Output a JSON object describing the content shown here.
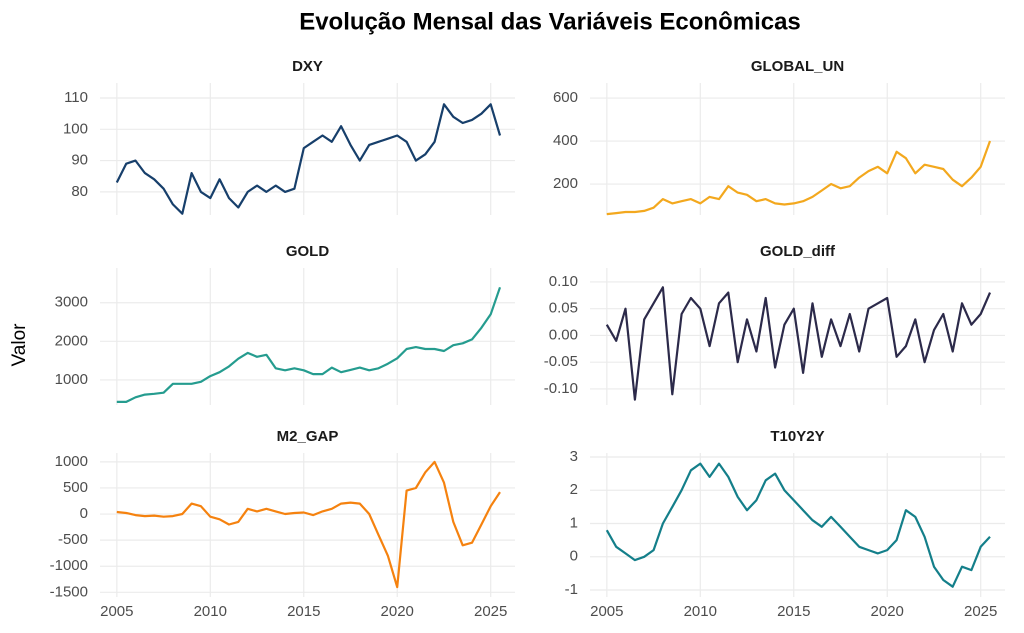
{
  "title": "Evolução Mensal das Variáveis Econômicas",
  "ylabel": "Valor",
  "chart_data": [
    {
      "type": "line",
      "title": "DXY",
      "color": "#173f6b",
      "grid": true,
      "x": [
        2005,
        2005.5,
        2006,
        2006.5,
        2007,
        2007.5,
        2008,
        2008.5,
        2009,
        2009.5,
        2010,
        2010.5,
        2011,
        2011.5,
        2012,
        2012.5,
        2013,
        2013.5,
        2014,
        2014.5,
        2015,
        2015.5,
        2016,
        2016.5,
        2017,
        2017.5,
        2018,
        2018.5,
        2019,
        2019.5,
        2020,
        2020.5,
        2021,
        2021.5,
        2022,
        2022.5,
        2023,
        2023.5,
        2024,
        2024.5,
        2025,
        2025.5
      ],
      "values": [
        83,
        89,
        90,
        86,
        84,
        81,
        76,
        73,
        86,
        80,
        78,
        84,
        78,
        75,
        80,
        82,
        80,
        82,
        80,
        81,
        94,
        96,
        98,
        96,
        101,
        95,
        90,
        95,
        96,
        97,
        98,
        96,
        90,
        92,
        96,
        108,
        104,
        102,
        103,
        105,
        108,
        98
      ],
      "xlim": [
        2004.1,
        2026.3
      ],
      "xticks": [
        2005,
        2010,
        2015,
        2020,
        2025
      ],
      "ylim": [
        72.6,
        114.8
      ],
      "yticks": [
        80,
        90,
        100,
        110
      ]
    },
    {
      "type": "line",
      "title": "GLOBAL_UN",
      "color": "#f3a81e",
      "grid": true,
      "x": [
        2005,
        2005.5,
        2006,
        2006.5,
        2007,
        2007.5,
        2008,
        2008.5,
        2009,
        2009.5,
        2010,
        2010.5,
        2011,
        2011.5,
        2012,
        2012.5,
        2013,
        2013.5,
        2014,
        2014.5,
        2015,
        2015.5,
        2016,
        2016.5,
        2017,
        2017.5,
        2018,
        2018.5,
        2019,
        2019.5,
        2020,
        2020.5,
        2021,
        2021.5,
        2022,
        2022.5,
        2023,
        2023.5,
        2024,
        2024.5,
        2025,
        2025.5
      ],
      "values": [
        60,
        65,
        70,
        70,
        75,
        90,
        130,
        110,
        120,
        130,
        110,
        140,
        130,
        190,
        160,
        150,
        120,
        130,
        110,
        105,
        110,
        120,
        140,
        170,
        200,
        180,
        190,
        230,
        260,
        280,
        250,
        350,
        320,
        250,
        290,
        280,
        270,
        220,
        190,
        230,
        280,
        400
      ],
      "xlim": [
        2004.1,
        2026.3
      ],
      "xticks": [
        2005,
        2010,
        2015,
        2020,
        2025
      ],
      "ylim": [
        56,
        670
      ],
      "yticks": [
        200,
        400,
        600
      ]
    },
    {
      "type": "line",
      "title": "GOLD",
      "color": "#259c8f",
      "grid": true,
      "x": [
        2005,
        2005.5,
        2006,
        2006.5,
        2007,
        2007.5,
        2008,
        2008.5,
        2009,
        2009.5,
        2010,
        2010.5,
        2011,
        2011.5,
        2012,
        2012.5,
        2013,
        2013.5,
        2014,
        2014.5,
        2015,
        2015.5,
        2016,
        2016.5,
        2017,
        2017.5,
        2018,
        2018.5,
        2019,
        2019.5,
        2020,
        2020.5,
        2021,
        2021.5,
        2022,
        2022.5,
        2023,
        2023.5,
        2024,
        2024.5,
        2025,
        2025.5
      ],
      "values": [
        430,
        430,
        550,
        620,
        640,
        670,
        900,
        900,
        900,
        950,
        1100,
        1200,
        1350,
        1550,
        1700,
        1600,
        1650,
        1300,
        1250,
        1300,
        1250,
        1150,
        1150,
        1320,
        1200,
        1260,
        1320,
        1250,
        1300,
        1420,
        1560,
        1800,
        1850,
        1800,
        1800,
        1750,
        1900,
        1950,
        2050,
        2350,
        2700,
        3400
      ],
      "xlim": [
        2004.1,
        2026.3
      ],
      "xticks": [
        2005,
        2010,
        2015,
        2020,
        2025
      ],
      "ylim": [
        350,
        3900
      ],
      "yticks": [
        1000,
        2000,
        3000
      ]
    },
    {
      "type": "line",
      "title": "GOLD_diff",
      "color": "#2c2a4a",
      "grid": true,
      "x": [
        2005,
        2005.5,
        2006,
        2006.5,
        2007,
        2007.5,
        2008,
        2008.5,
        2009,
        2009.5,
        2010,
        2010.5,
        2011,
        2011.5,
        2012,
        2012.5,
        2013,
        2013.5,
        2014,
        2014.5,
        2015,
        2015.5,
        2016,
        2016.5,
        2017,
        2017.5,
        2018,
        2018.5,
        2019,
        2019.5,
        2020,
        2020.5,
        2021,
        2021.5,
        2022,
        2022.5,
        2023,
        2023.5,
        2024,
        2024.5,
        2025,
        2025.5
      ],
      "values": [
        0.02,
        -0.01,
        0.05,
        -0.12,
        0.03,
        0.06,
        0.09,
        -0.11,
        0.04,
        0.07,
        0.05,
        -0.02,
        0.06,
        0.08,
        -0.05,
        0.03,
        -0.03,
        0.07,
        -0.06,
        0.02,
        0.05,
        -0.07,
        0.06,
        -0.04,
        0.03,
        -0.02,
        0.04,
        -0.03,
        0.05,
        0.06,
        0.07,
        -0.04,
        -0.02,
        0.03,
        -0.05,
        0.01,
        0.04,
        -0.03,
        0.06,
        0.02,
        0.04,
        0.08
      ],
      "xlim": [
        2004.1,
        2026.3
      ],
      "xticks": [
        2005,
        2010,
        2015,
        2020,
        2025
      ],
      "ylim": [
        -0.13,
        0.126
      ],
      "yticks": [
        {
          "value": 0.1,
          "label": "0.10"
        },
        0.05,
        {
          "value": 0,
          "label": "0.00"
        },
        -0.05,
        {
          "value": -0.1,
          "label": "-0.10"
        }
      ]
    },
    {
      "type": "line",
      "title": "M2_GAP",
      "color": "#f5820f",
      "grid": true,
      "x": [
        2005,
        2005.5,
        2006,
        2006.5,
        2007,
        2007.5,
        2008,
        2008.5,
        2009,
        2009.5,
        2010,
        2010.5,
        2011,
        2011.5,
        2012,
        2012.5,
        2013,
        2013.5,
        2014,
        2014.5,
        2015,
        2015.5,
        2016,
        2016.5,
        2017,
        2017.5,
        2018,
        2018.5,
        2019,
        2019.5,
        2020,
        2020.5,
        2021,
        2021.5,
        2022,
        2022.5,
        2023,
        2023.5,
        2024,
        2024.5,
        2025,
        2025.5
      ],
      "values": [
        40,
        20,
        -20,
        -40,
        -30,
        -50,
        -40,
        0,
        200,
        150,
        -50,
        -100,
        -200,
        -150,
        100,
        50,
        100,
        50,
        0,
        20,
        30,
        -20,
        50,
        100,
        200,
        220,
        200,
        0,
        -400,
        -800,
        -1400,
        450,
        500,
        800,
        1000,
        600,
        -150,
        -600,
        -550,
        -200,
        150,
        420
      ],
      "xlim": [
        2004.1,
        2026.3
      ],
      "xticks": [
        2005,
        2010,
        2015,
        2020,
        2025
      ],
      "ylim": [
        -1590,
        1170
      ],
      "yticks": [
        -1500,
        -1000,
        -500,
        0,
        500,
        1000
      ]
    },
    {
      "type": "line",
      "title": "T10Y2Y",
      "color": "#147f8a",
      "grid": true,
      "x": [
        2005,
        2005.5,
        2006,
        2006.5,
        2007,
        2007.5,
        2008,
        2008.5,
        2009,
        2009.5,
        2010,
        2010.5,
        2011,
        2011.5,
        2012,
        2012.5,
        2013,
        2013.5,
        2014,
        2014.5,
        2015,
        2015.5,
        2016,
        2016.5,
        2017,
        2017.5,
        2018,
        2018.5,
        2019,
        2019.5,
        2020,
        2020.5,
        2021,
        2021.5,
        2022,
        2022.5,
        2023,
        2023.5,
        2024,
        2024.5,
        2025,
        2025.5
      ],
      "values": [
        0.8,
        0.3,
        0.1,
        -0.1,
        0,
        0.2,
        1.0,
        1.5,
        2.0,
        2.6,
        2.8,
        2.4,
        2.8,
        2.4,
        1.8,
        1.4,
        1.7,
        2.3,
        2.5,
        2.0,
        1.7,
        1.4,
        1.1,
        0.9,
        1.2,
        0.9,
        0.6,
        0.3,
        0.2,
        0.1,
        0.2,
        0.5,
        1.4,
        1.2,
        0.6,
        -0.3,
        -0.7,
        -0.9,
        -0.3,
        -0.4,
        0.3,
        0.6
      ],
      "xlim": [
        2004.1,
        2026.3
      ],
      "xticks": [
        2005,
        2010,
        2015,
        2020,
        2025
      ],
      "ylim": [
        -1.21,
        3.12
      ],
      "yticks": [
        -1,
        0,
        1,
        2,
        3
      ]
    }
  ]
}
